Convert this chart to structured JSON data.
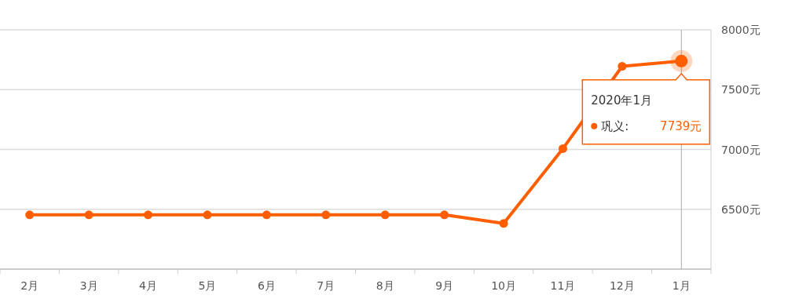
{
  "chart_data": {
    "type": "line",
    "categories": [
      "2月",
      "3月",
      "4月",
      "5月",
      "6月",
      "7月",
      "8月",
      "9月",
      "10月",
      "11月",
      "12月",
      "1月"
    ],
    "series": [
      {
        "name": "巩义:",
        "color": "#ff5e00",
        "values": [
          6454,
          6454,
          6454,
          6454,
          6454,
          6454,
          6454,
          6454,
          6382,
          7007,
          7695,
          7739
        ]
      }
    ],
    "ylim": [
      6000,
      8000
    ],
    "yticks": [
      {
        "value": 6000,
        "label": null
      },
      {
        "value": 6500,
        "label": "6500元"
      },
      {
        "value": 7000,
        "label": "7000元"
      },
      {
        "value": 7500,
        "label": "7500元"
      },
      {
        "value": 8000,
        "label": "8000元"
      }
    ],
    "grid": "y",
    "marker": "circle",
    "legend": "right",
    "annotations": [
      "2020年1月",
      "7739元"
    ],
    "ref_lines": [
      {
        "axis": "x",
        "value": "1月",
        "color": "#aaaaaa"
      }
    ]
  }
}
